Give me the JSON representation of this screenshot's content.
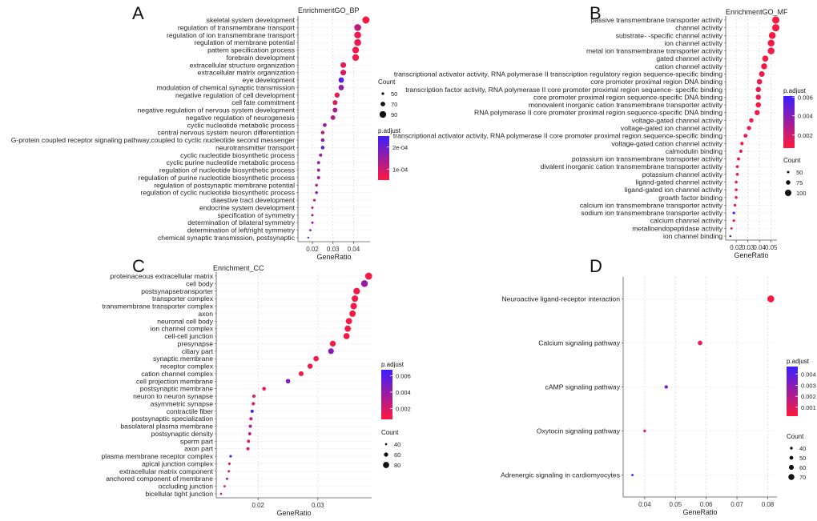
{
  "chart_data": [
    {
      "panel": "A",
      "type": "scatter",
      "title": "EnrichmentGO_BP",
      "xlabel": "GeneRatio",
      "ylabel": "",
      "xlim": [
        0.013,
        0.048
      ],
      "xticks": [
        0.02,
        0.03,
        0.04
      ],
      "xtick_labels": [
        "0.02",
        "0.03",
        "0.04"
      ],
      "terms": [
        "skeletal system development",
        "regulation of transmembrane transport",
        "regulation of ion transmembrane transport",
        "regulation of membrane potential",
        "pattern specification process",
        "forebrain development",
        "extracellular structure organization",
        "extracellular matrix organization",
        "eye development",
        "modulation of chemical synaptic transmission",
        "negative regulation of cell development",
        "cell fate commitment",
        "negative regulation of nervous system development",
        "negative regulation of neurogenesis",
        "cyclic nucleotide metabolic process",
        "central nervous system neuron differentiation",
        "G-protein coupled receptor signaling pathway,coupled to cyclic nucleotide second messenger",
        "neurotransmitter transport",
        "cyclic nucleotide biosynthetic process",
        "cyclic purine nucleotide metabolic process",
        "regulation of nucleotide biosynthetic process",
        "regulation of purine nucleotide biosynthetic process",
        "regulation of postsynaptic membrane potential",
        "regulation of cyclic nucleotide biosynthetic process",
        "diaestive tract development",
        "endocrine system development",
        "specification of symmetry",
        "determination of bilateral symmetry",
        "determination of left/right symmetry",
        "chemical synaptic transmission, postsynaptic"
      ],
      "gene_ratio": [
        0.046,
        0.042,
        0.042,
        0.042,
        0.041,
        0.041,
        0.035,
        0.035,
        0.034,
        0.034,
        0.032,
        0.031,
        0.031,
        0.03,
        0.026,
        0.025,
        0.025,
        0.025,
        0.024,
        0.023,
        0.023,
        0.023,
        0.022,
        0.022,
        0.021,
        0.02,
        0.02,
        0.02,
        0.019,
        0.018
      ],
      "count": [
        95,
        92,
        92,
        92,
        90,
        90,
        80,
        80,
        78,
        78,
        74,
        72,
        72,
        70,
        62,
        60,
        60,
        60,
        57,
        55,
        55,
        55,
        52,
        52,
        50,
        48,
        48,
        48,
        46,
        43
      ],
      "p_adjust_rel": [
        0.05,
        0.35,
        0.1,
        0.1,
        0.08,
        0.08,
        0.15,
        0.2,
        0.85,
        0.55,
        0.12,
        0.2,
        0.45,
        0.4,
        0.5,
        0.35,
        0.6,
        0.85,
        0.45,
        0.55,
        0.5,
        0.45,
        0.4,
        0.65,
        0.2,
        0.3,
        0.6,
        0.5,
        0.6,
        0.7
      ],
      "legend_count": {
        "title": "Count",
        "values": [
          50,
          70,
          90
        ],
        "labels": [
          "50",
          "70",
          "90"
        ]
      },
      "legend_padj": {
        "title": "p.adjust",
        "labels": [
          "2e-04",
          "1e-04"
        ],
        "label_rel": [
          0.75,
          0.25
        ]
      },
      "count_range": [
        40,
        100
      ],
      "colors": {
        "high": "#3b1fff",
        "low": "#ff1a3c"
      }
    },
    {
      "panel": "B",
      "type": "scatter",
      "title": "EnrichmentGO_MF",
      "xlabel": "GeneRatio",
      "ylabel": "",
      "xlim": [
        0.011,
        0.055
      ],
      "xticks": [
        0.02,
        0.03,
        0.04,
        0.05
      ],
      "xtick_labels": [
        "0.02",
        "0.03",
        "0.04",
        "0.05"
      ],
      "terms": [
        "passive transmembrane transporter activity",
        "channel activity",
        "substrate- -specific channel activity",
        "ion channel activity",
        "metal ion transmembrane transporter activity",
        "gated channel activity",
        "cation channel activity",
        "transcriptional activator activity, RNA polymerase II transcription regulatory region sequence-specific binding",
        "core promoter proximal region DNA binding",
        "transcription factor activity, RNA polymerase II core promoter proximal region sequence- specific binding",
        "core promoter proximal region sequence-specific DNA binding",
        "monovalent inorganic cation transmembrane transporter activity",
        "RNA polymerase II core promoter proximal region sequence-specific DNA binding",
        "voltage-gated channel activity",
        "voltage-gated ion channel activity",
        "transcriptional activator activity, RNA polymerase II core promoter proximal region sequence-specific binding",
        "voltage-gated cation channel activity",
        "calmodulin binding",
        "potassium ion transmembrane transporter activity",
        "divalent inorganic cation transmembrane transporter activity",
        "potassium channel activity",
        "ligand-gated channel activity",
        "ligand-gated ion channel activity",
        "growth factor binding",
        "calcium ion transmembrane transporter activity",
        "sodium ion transmembrane transporter activity",
        "calcium channel activity",
        "metalloendopeptidase activity",
        "ion channel binding"
      ],
      "gene_ratio": [
        0.054,
        0.054,
        0.051,
        0.05,
        0.05,
        0.045,
        0.044,
        0.042,
        0.04,
        0.039,
        0.039,
        0.039,
        0.038,
        0.033,
        0.031,
        0.028,
        0.025,
        0.024,
        0.022,
        0.021,
        0.021,
        0.02,
        0.02,
        0.02,
        0.019,
        0.018,
        0.018,
        0.016,
        0.015
      ],
      "count": [
        110,
        110,
        105,
        104,
        104,
        96,
        94,
        90,
        87,
        85,
        85,
        85,
        84,
        75,
        72,
        68,
        63,
        61,
        58,
        56,
        56,
        55,
        55,
        55,
        54,
        52,
        52,
        48,
        46
      ],
      "p_adjust_rel": [
        0.05,
        0.05,
        0.05,
        0.05,
        0.05,
        0.05,
        0.05,
        0.1,
        0.1,
        0.1,
        0.1,
        0.05,
        0.1,
        0.08,
        0.08,
        0.1,
        0.05,
        0.1,
        0.1,
        0.08,
        0.08,
        0.08,
        0.08,
        0.1,
        0.1,
        0.95,
        0.15,
        0.25,
        0.8
      ],
      "legend_count": {
        "title": "Count",
        "values": [
          50,
          75,
          100
        ],
        "labels": [
          "50",
          "75",
          "100"
        ]
      },
      "legend_padj": {
        "title": "p.adjust",
        "labels": [
          "0.006",
          "0.004",
          "0.002"
        ],
        "label_rel": [
          0.98,
          0.62,
          0.25
        ]
      },
      "count_range": [
        40,
        115
      ],
      "colors": {
        "high": "#3b1fff",
        "low": "#ff1a3c"
      }
    },
    {
      "panel": "C",
      "type": "scatter",
      "title": "Enrichment_CC",
      "xlabel": "GeneRatio",
      "ylabel": "",
      "xlim": [
        0.013,
        0.039
      ],
      "xticks": [
        0.02,
        0.03
      ],
      "xtick_labels": [
        "0.02",
        "0.03"
      ],
      "terms": [
        "proteinaceous extracellular matrix",
        "cell body",
        "postsynapsetransporter",
        "transporter complex",
        "transmembrane transporter complex",
        "axon",
        "neuronal cell body",
        "ion channel complex",
        "cell-cell junction",
        "presynapse",
        "ciliary part",
        "synaptic membrane",
        "receptor complex",
        "cation channel complex",
        "cell projection membrane",
        "postsynaptic membrane",
        "neuron to neuron synapse",
        "asymmetric synapse",
        "contractile fiber",
        "postsynaptic specialization",
        "basolateral plasma membrane",
        "postsynaptic density",
        "sperm part",
        "axon part",
        "plasma membrane receptor complex",
        "apical junction complex",
        "extracellular matrix component",
        "anchored component of membrane",
        "occluding junction",
        "bicellular tight junction"
      ],
      "gene_ratio": [
        0.0385,
        0.0378,
        0.0365,
        0.0362,
        0.036,
        0.0358,
        0.0352,
        0.035,
        0.0348,
        0.0325,
        0.0322,
        0.0297,
        0.0287,
        0.0272,
        0.025,
        0.021,
        0.0193,
        0.0192,
        0.019,
        0.0188,
        0.0187,
        0.0186,
        0.0184,
        0.0183,
        0.0154,
        0.0152,
        0.0151,
        0.0148,
        0.0144,
        0.0138
      ],
      "count": [
        88,
        86,
        84,
        83,
        83,
        82,
        81,
        81,
        80,
        77,
        76,
        72,
        70,
        67,
        64,
        56,
        52,
        52,
        51,
        51,
        50,
        50,
        50,
        50,
        44,
        44,
        43,
        42,
        41,
        40
      ],
      "p_adjust_rel": [
        0.05,
        0.55,
        0.05,
        0.05,
        0.05,
        0.05,
        0.05,
        0.05,
        0.05,
        0.05,
        0.6,
        0.05,
        0.1,
        0.05,
        0.65,
        0.1,
        0.15,
        0.15,
        0.95,
        0.3,
        0.45,
        0.3,
        0.15,
        0.15,
        0.85,
        0.15,
        0.2,
        0.6,
        0.2,
        0.3
      ],
      "legend_count": {
        "title": "Count",
        "values": [
          40,
          60,
          80
        ],
        "labels": [
          "40",
          "60",
          "80"
        ]
      },
      "legend_padj": {
        "title": "p.adjust",
        "labels": [
          "0.006",
          "0.004",
          "0.002"
        ],
        "label_rel": [
          0.88,
          0.55,
          0.22
        ]
      },
      "count_range": [
        35,
        95
      ],
      "colors": {
        "high": "#3b1fff",
        "low": "#ff1a3c"
      }
    },
    {
      "panel": "D",
      "type": "scatter",
      "title": "",
      "xlabel": "GeneRatio",
      "ylabel": "",
      "xlim": [
        0.033,
        0.083
      ],
      "xticks": [
        0.04,
        0.05,
        0.06,
        0.07,
        0.08
      ],
      "xtick_labels": [
        "0.04",
        "0.05",
        "0.06",
        "0.07",
        "0.08"
      ],
      "terms": [
        "Neuroactive ligand-receptor interaction",
        "Calcium signaling pathway",
        "cAMP signaling pathway",
        "Oxytocin signaling pathway",
        "Adrenergic signaling in cardiomyocytes"
      ],
      "gene_ratio": [
        0.081,
        0.058,
        0.047,
        0.04,
        0.036
      ],
      "count": [
        78,
        57,
        47,
        40,
        36
      ],
      "p_adjust_rel": [
        0.05,
        0.1,
        0.75,
        0.1,
        0.95
      ],
      "legend_count": {
        "title": "Count",
        "values": [
          40,
          50,
          60,
          70
        ],
        "labels": [
          "40",
          "50",
          "60",
          "70"
        ]
      },
      "legend_padj": {
        "title": "p.adjust",
        "labels": [
          "0.004",
          "0.003",
          "0.002",
          "0.001"
        ],
        "label_rel": [
          0.85,
          0.62,
          0.4,
          0.18
        ]
      },
      "count_range": [
        30,
        85
      ],
      "colors": {
        "high": "#3b1fff",
        "low": "#ff1a3c"
      }
    }
  ]
}
